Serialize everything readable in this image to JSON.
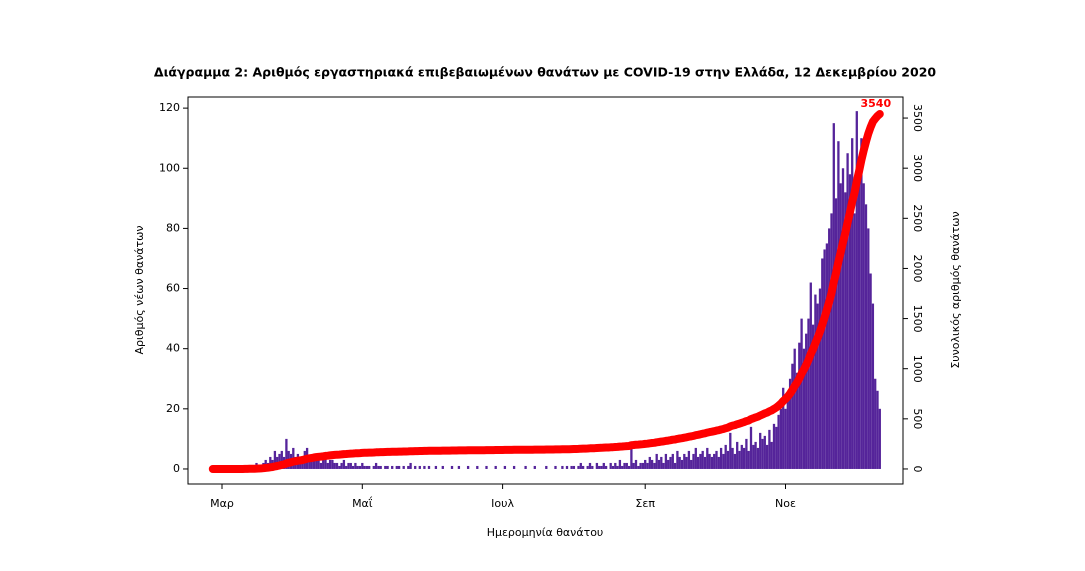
{
  "chart_data": {
    "type": "bar_line",
    "title": "Διάγραμμα 2: Αριθμός εργαστηριακά επιβεβαιωμένων θανάτων με COVID-19 στην Ελλάδα, 12 Δεκεμβρίου 2020",
    "xlabel": "Ημερομηνία θανάτου",
    "ylabel": "Αριθμός νέων θανάτων",
    "y2label": "Συνολικός αριθμός θανάτων",
    "categories": [
      null,
      null,
      null,
      null,
      "Μαρ",
      null,
      null,
      null,
      null,
      null,
      null,
      null,
      null,
      null,
      null,
      null,
      null,
      null,
      null,
      null,
      null,
      null,
      null,
      null,
      null,
      null,
      null,
      null,
      null,
      null,
      null,
      null,
      null,
      null,
      null,
      null,
      null,
      null,
      null,
      null,
      null,
      null,
      null,
      null,
      null,
      null,
      null,
      null,
      null,
      null,
      null,
      null,
      null,
      null,
      null,
      null,
      null,
      null,
      null,
      null,
      null,
      null,
      null,
      null,
      null,
      "Μαΐ",
      null,
      null,
      null,
      null,
      null,
      null,
      null,
      null,
      null,
      null,
      null,
      null,
      null,
      null,
      null,
      null,
      null,
      null,
      null,
      null,
      null,
      null,
      null,
      null,
      null,
      null,
      null,
      null,
      null,
      null,
      null,
      null,
      null,
      null,
      null,
      null,
      null,
      null,
      null,
      null,
      null,
      null,
      null,
      null,
      null,
      null,
      null,
      null,
      null,
      null,
      null,
      null,
      null,
      null,
      null,
      null,
      null,
      null,
      null,
      null,
      "Ιουλ",
      null,
      null,
      null,
      null,
      null,
      null,
      null,
      null,
      null,
      null,
      null,
      null,
      null,
      null,
      null,
      null,
      null,
      null,
      null,
      null,
      null,
      null,
      null,
      null,
      null,
      null,
      null,
      null,
      null,
      null,
      null,
      null,
      null,
      null,
      null,
      null,
      null,
      null,
      null,
      null,
      null,
      null,
      null,
      null,
      null,
      null,
      null,
      null,
      null,
      null,
      null,
      null,
      null,
      null,
      null,
      null,
      null,
      null,
      null,
      null,
      null,
      "Σεπ",
      null,
      null,
      null,
      null,
      null,
      null,
      null,
      null,
      null,
      null,
      null,
      null,
      null,
      null,
      null,
      null,
      null,
      null,
      null,
      null,
      null,
      null,
      null,
      null,
      null,
      null,
      null,
      null,
      null,
      null,
      null,
      null,
      null,
      null,
      null,
      null,
      null,
      null,
      null,
      null,
      null,
      null,
      null,
      null,
      null,
      null,
      null,
      null,
      null,
      null,
      null,
      null,
      null,
      null,
      null,
      null,
      null,
      null,
      null,
      null,
      "Νοε",
      null,
      null,
      null,
      null,
      null,
      null,
      null,
      null,
      null,
      null,
      null,
      null,
      null,
      null,
      null,
      null,
      null,
      null,
      null,
      null,
      null,
      null,
      null,
      null,
      null,
      null,
      null,
      null,
      null,
      null,
      null,
      null,
      null,
      null,
      null,
      null,
      null,
      null,
      null,
      null,
      null
    ],
    "series": [
      {
        "color": "#55249a",
        "values": [
          0,
          0,
          0,
          0,
          0,
          0,
          0,
          0,
          0,
          0,
          0,
          0,
          0,
          0,
          1,
          0,
          1,
          0,
          0,
          2,
          1,
          1,
          2,
          3,
          2,
          4,
          3,
          6,
          4,
          5,
          6,
          4,
          10,
          6,
          5,
          7,
          4,
          5,
          3,
          4,
          6,
          7,
          4,
          3,
          5,
          4,
          3,
          2,
          3,
          4,
          2,
          3,
          3,
          2,
          2,
          1,
          2,
          3,
          1,
          2,
          2,
          1,
          2,
          1,
          1,
          2,
          1,
          1,
          1,
          0,
          1,
          2,
          1,
          1,
          0,
          1,
          1,
          0,
          1,
          0,
          1,
          1,
          0,
          1,
          0,
          1,
          2,
          0,
          1,
          0,
          1,
          0,
          1,
          0,
          1,
          0,
          0,
          1,
          0,
          0,
          1,
          0,
          0,
          0,
          1,
          0,
          0,
          1,
          0,
          0,
          0,
          1,
          0,
          0,
          0,
          1,
          0,
          0,
          0,
          1,
          0,
          0,
          0,
          1,
          0,
          0,
          0,
          1,
          0,
          0,
          0,
          1,
          0,
          0,
          0,
          0,
          1,
          0,
          0,
          0,
          1,
          0,
          0,
          0,
          0,
          1,
          0,
          0,
          0,
          1,
          0,
          0,
          1,
          0,
          1,
          0,
          1,
          1,
          0,
          1,
          2,
          1,
          0,
          1,
          2,
          1,
          0,
          2,
          1,
          1,
          2,
          1,
          0,
          2,
          1,
          2,
          1,
          3,
          1,
          2,
          2,
          1,
          8,
          2,
          3,
          1,
          2,
          2,
          3,
          2,
          4,
          3,
          2,
          5,
          3,
          4,
          2,
          5,
          3,
          4,
          5,
          2,
          6,
          4,
          3,
          5,
          4,
          6,
          3,
          5,
          7,
          4,
          5,
          6,
          4,
          7,
          5,
          4,
          5,
          6,
          4,
          7,
          5,
          8,
          6,
          12,
          7,
          5,
          9,
          6,
          8,
          7,
          10,
          6,
          14,
          8,
          9,
          7,
          12,
          10,
          11,
          8,
          13,
          9,
          15,
          14,
          18,
          20,
          27,
          20,
          25,
          30,
          35,
          40,
          32,
          42,
          50,
          40,
          45,
          50,
          62,
          48,
          58,
          55,
          60,
          70,
          73,
          75,
          80,
          85,
          115,
          90,
          109,
          95,
          100,
          92,
          105,
          98,
          110,
          85,
          119,
          100,
          110,
          95,
          88,
          80,
          65,
          55,
          30,
          26,
          20
        ]
      },
      {
        "color": "#ff0000",
        "axis": "y2",
        "values": [
          0,
          0,
          0,
          0,
          0,
          0,
          0,
          0,
          0,
          0,
          0,
          0,
          0,
          0,
          1,
          1,
          2,
          2,
          2,
          4,
          5,
          6,
          8,
          11,
          13,
          17,
          20,
          26,
          30,
          35,
          41,
          45,
          55,
          61,
          66,
          73,
          77,
          82,
          85,
          89,
          95,
          102,
          106,
          109,
          114,
          118,
          121,
          123,
          126,
          130,
          132,
          135,
          138,
          140,
          142,
          143,
          145,
          148,
          149,
          151,
          153,
          154,
          156,
          157,
          158,
          160,
          161,
          162,
          163,
          163,
          164,
          166,
          167,
          168,
          168,
          169,
          170,
          170,
          171,
          171,
          172,
          173,
          173,
          174,
          174,
          175,
          177,
          177,
          178,
          178,
          179,
          179,
          180,
          180,
          181,
          181,
          181,
          182,
          182,
          182,
          183,
          183,
          183,
          183,
          184,
          184,
          184,
          185,
          185,
          185,
          185,
          186,
          186,
          186,
          186,
          187,
          187,
          187,
          187,
          188,
          188,
          188,
          188,
          189,
          189,
          189,
          189,
          190,
          190,
          190,
          190,
          191,
          191,
          191,
          191,
          191,
          192,
          192,
          192,
          192,
          193,
          193,
          193,
          193,
          193,
          194,
          194,
          194,
          194,
          195,
          195,
          195,
          196,
          196,
          197,
          197,
          198,
          199,
          199,
          200,
          202,
          203,
          203,
          204,
          206,
          207,
          207,
          209,
          210,
          211,
          213,
          214,
          214,
          216,
          217,
          219,
          220,
          223,
          224,
          226,
          228,
          229,
          237,
          239,
          242,
          243,
          245,
          247,
          250,
          252,
          256,
          259,
          261,
          266,
          269,
          273,
          275,
          280,
          283,
          287,
          292,
          294,
          300,
          304,
          307,
          312,
          316,
          322,
          325,
          330,
          337,
          341,
          346,
          352,
          356,
          363,
          368,
          372,
          377,
          383,
          387,
          394,
          399,
          407,
          413,
          425,
          432,
          437,
          446,
          452,
          460,
          467,
          477,
          483,
          497,
          505,
          514,
          521,
          533,
          543,
          554,
          562,
          575,
          584,
          599,
          613,
          631,
          651,
          678,
          698,
          723,
          753,
          788,
          828,
          860,
          902,
          952,
          992,
          1037,
          1087,
          1149,
          1197,
          1255,
          1310,
          1370,
          1440,
          1513,
          1588,
          1668,
          1753,
          1868,
          1958,
          2067,
          2162,
          2262,
          2354,
          2459,
          2557,
          2667,
          2752,
          2871,
          2971,
          3081,
          3176,
          3264,
          3344,
          3409,
          3464,
          3494,
          3520,
          3540
        ]
      }
    ],
    "ylim": [
      -5,
      123.7
    ],
    "yticks": [
      0,
      20,
      40,
      60,
      80,
      100,
      120
    ],
    "y2lim": [
      -150,
      3710
    ],
    "y2ticks": [
      0,
      500,
      1000,
      1500,
      2000,
      2500,
      3000,
      3500
    ],
    "grid": false
  }
}
